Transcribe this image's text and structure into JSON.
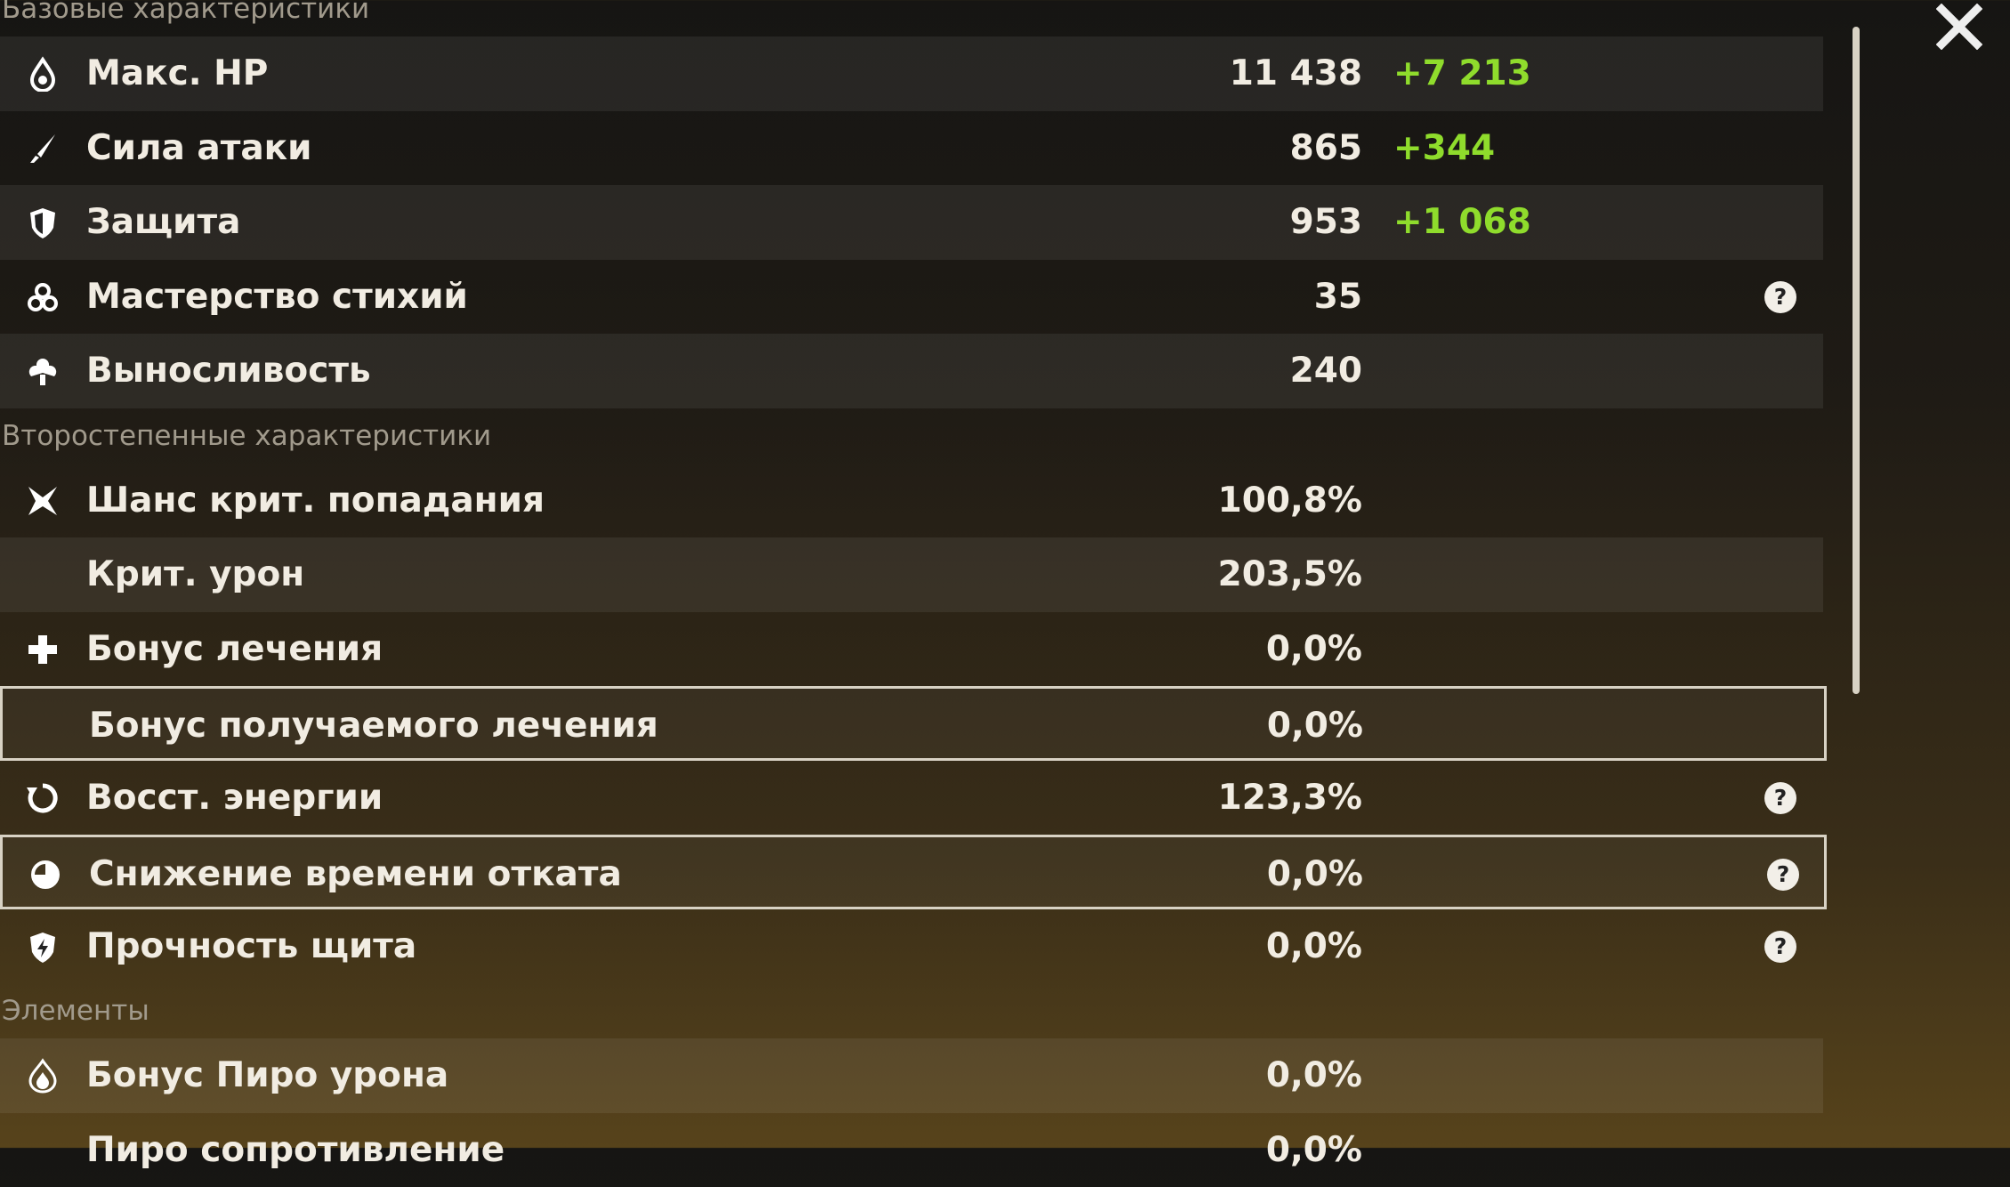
{
  "sections": [
    {
      "title": "Базовые характеристики",
      "rows": [
        {
          "label": "Макс. HP",
          "value": "11 438",
          "bonus": "+7 213"
        },
        {
          "label": "Сила атаки",
          "value": "865",
          "bonus": "+344"
        },
        {
          "label": "Защита",
          "value": "953",
          "bonus": "+1 068"
        },
        {
          "label": "Мастерство стихий",
          "value": "35"
        },
        {
          "label": "Выносливость",
          "value": "240"
        }
      ]
    },
    {
      "title": "Второстепенные характеристики",
      "rows": [
        {
          "label": "Шанс крит. попадания",
          "value": "100,8%"
        },
        {
          "label": "Крит. урон",
          "value": "203,5%"
        },
        {
          "label": "Бонус лечения",
          "value": "0,0%"
        },
        {
          "label": "Бонус получаемого лечения",
          "value": "0,0%"
        },
        {
          "label": "Восст. энергии",
          "value": "123,3%"
        },
        {
          "label": "Снижение времени отката",
          "value": "0,0%"
        },
        {
          "label": "Прочность щита",
          "value": "0,0%"
        }
      ]
    },
    {
      "title": "Элементы",
      "rows": [
        {
          "label": "Бонус Пиро урона",
          "value": "0,0%"
        },
        {
          "label": "Пиро сопротивление",
          "value": "0,0%"
        }
      ]
    }
  ]
}
